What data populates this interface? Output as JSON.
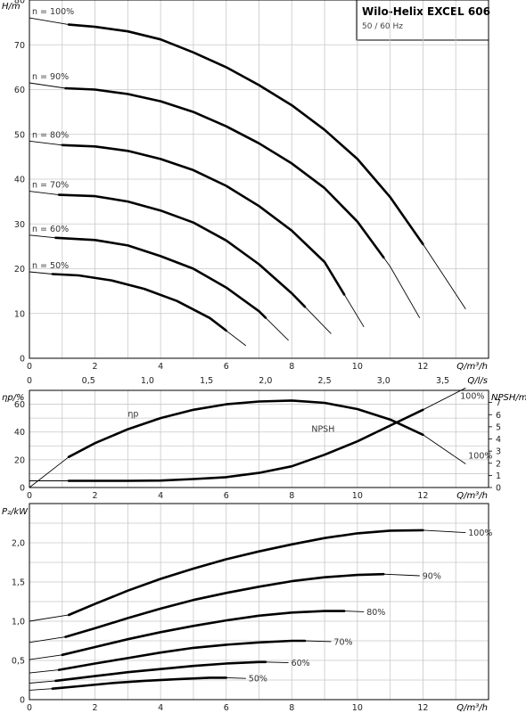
{
  "header": {
    "title": "Wilo-Helix EXCEL 606",
    "subtitle": "50 / 60 Hz"
  },
  "chart_data": [
    {
      "type": "line",
      "name": "head",
      "ylabel": "H/m",
      "xlabel": "Q/m³/h",
      "xlim": [
        0,
        14
      ],
      "ylim": [
        0,
        80
      ],
      "xticks": [
        0,
        2,
        4,
        6,
        8,
        10,
        12
      ],
      "yticks": [
        0,
        10,
        20,
        30,
        40,
        50,
        60,
        70,
        80
      ],
      "secondary_x": {
        "label": "Q/l/s",
        "ticks": [
          "0",
          "0,5",
          "1,0",
          "1,5",
          "2,0",
          "2,5",
          "3,0",
          "3,5"
        ],
        "values": [
          0,
          0.5,
          1.0,
          1.5,
          2.0,
          2.5,
          3.0,
          3.5
        ]
      },
      "grid": true,
      "series": [
        {
          "name": "n = 100%",
          "x": [
            0,
            1.2,
            2,
            3,
            4,
            5,
            6,
            7,
            8,
            9,
            10,
            11,
            12,
            13.3
          ],
          "y": [
            76,
            74.5,
            74,
            73,
            71.2,
            68.3,
            65,
            61,
            56.5,
            51,
            44.5,
            36,
            25.5,
            11
          ],
          "op_start": 1.2,
          "op_end": 12
        },
        {
          "name": "n = 90%",
          "x": [
            0,
            1.1,
            2,
            3,
            4,
            5,
            6,
            7,
            8,
            9,
            10,
            11,
            11.9
          ],
          "y": [
            61.5,
            60.3,
            60,
            59,
            57.4,
            55,
            51.8,
            48,
            43.5,
            38,
            30.5,
            20.5,
            9
          ],
          "op_start": 1.1,
          "op_end": 10.8
        },
        {
          "name": "n = 80%",
          "x": [
            0,
            1,
            2,
            3,
            4,
            5,
            6,
            7,
            8,
            9,
            10.2
          ],
          "y": [
            48.5,
            47.6,
            47.3,
            46.3,
            44.5,
            42,
            38.5,
            34,
            28.5,
            21.5,
            7
          ],
          "op_start": 1.0,
          "op_end": 9.6
        },
        {
          "name": "n = 70%",
          "x": [
            0,
            0.9,
            2,
            3,
            4,
            5,
            6,
            7,
            8,
            9.2
          ],
          "y": [
            37.3,
            36.5,
            36.2,
            35,
            33,
            30.3,
            26.3,
            21,
            14.5,
            5.5
          ],
          "op_start": 0.9,
          "op_end": 8.4
        },
        {
          "name": "n = 60%",
          "x": [
            0,
            0.8,
            2,
            3,
            4,
            5,
            6,
            7,
            7.9
          ],
          "y": [
            27.5,
            26.9,
            26.4,
            25.2,
            22.8,
            20,
            15.8,
            10.5,
            4
          ],
          "op_start": 0.8,
          "op_end": 7.2
        },
        {
          "name": "n = 50%",
          "x": [
            0,
            0.7,
            1.5,
            2.5,
            3.5,
            4.5,
            5.5,
            6.6
          ],
          "y": [
            19.3,
            18.8,
            18.5,
            17.4,
            15.5,
            12.8,
            9,
            2.8
          ],
          "op_start": 0.7,
          "op_end": 6.0
        }
      ]
    },
    {
      "type": "line",
      "name": "efficiency-npsh",
      "ylabel": "ηp/%",
      "xlabel": "Q/m³/h",
      "y2label": "NPSH/m",
      "xlim": [
        0,
        14
      ],
      "ylim": [
        0,
        70
      ],
      "y2lim": [
        0,
        8
      ],
      "xticks": [
        0,
        2,
        4,
        6,
        8,
        10,
        12
      ],
      "yticks": [
        0,
        20,
        40,
        60
      ],
      "yticks_minor": [
        10,
        30,
        50,
        70
      ],
      "y2ticks": [
        0,
        1,
        2,
        3,
        4,
        5,
        6,
        7
      ],
      "grid": true,
      "series": [
        {
          "name": "ηp",
          "label_end": "100%",
          "x": [
            0,
            1.2,
            2,
            3,
            4,
            5,
            6,
            7,
            8,
            9,
            10,
            11,
            12,
            13.3
          ],
          "y": [
            0,
            22,
            32,
            42,
            50,
            56,
            60,
            62,
            62.7,
            61,
            56.5,
            49,
            38,
            17
          ],
          "op_start": 1.2,
          "op_end": 12
        },
        {
          "name": "NPSH",
          "label_end": "100%",
          "axis": "y2",
          "x": [
            0,
            1.2,
            2,
            3,
            4,
            5,
            6,
            7,
            8,
            9,
            10,
            11,
            12,
            13.3
          ],
          "y": [
            0.55,
            0.55,
            0.55,
            0.55,
            0.57,
            0.7,
            0.85,
            1.2,
            1.75,
            2.7,
            3.8,
            5.1,
            6.4,
            8.2
          ],
          "op_start": 1.2,
          "op_end": 12
        }
      ]
    },
    {
      "type": "line",
      "name": "power",
      "ylabel": "P₂/kW",
      "xlabel": "Q/m³/h",
      "xlim": [
        0,
        14
      ],
      "ylim": [
        0,
        2.5
      ],
      "xticks": [
        0,
        2,
        4,
        6,
        8,
        10,
        12
      ],
      "yticks": [
        0,
        0.5,
        1.0,
        1.5,
        2.0
      ],
      "ytick_labels": [
        "0",
        "0,5",
        "1,0",
        "1,5",
        "2,0"
      ],
      "grid": true,
      "series": [
        {
          "name": "100%",
          "x": [
            0,
            1.2,
            2,
            3,
            4,
            5,
            6,
            7,
            8,
            9,
            10,
            11,
            12,
            13.3
          ],
          "y": [
            1.0,
            1.08,
            1.22,
            1.39,
            1.54,
            1.67,
            1.79,
            1.89,
            1.98,
            2.06,
            2.12,
            2.155,
            2.16,
            2.13
          ],
          "op_start": 1.2,
          "op_end": 12
        },
        {
          "name": "90%",
          "x": [
            0,
            1.1,
            2,
            3,
            4,
            5,
            6,
            7,
            8,
            9,
            10,
            10.8,
            11.9
          ],
          "y": [
            0.73,
            0.8,
            0.91,
            1.04,
            1.16,
            1.27,
            1.36,
            1.44,
            1.51,
            1.56,
            1.59,
            1.6,
            1.58
          ],
          "op_start": 1.1,
          "op_end": 10.8
        },
        {
          "name": "80%",
          "x": [
            0,
            1,
            2,
            3,
            4,
            5,
            6,
            7,
            8,
            9,
            9.6,
            10.2
          ],
          "y": [
            0.51,
            0.57,
            0.67,
            0.77,
            0.86,
            0.94,
            1.01,
            1.07,
            1.11,
            1.13,
            1.13,
            1.12
          ],
          "op_start": 1.0,
          "op_end": 9.6
        },
        {
          "name": "70%",
          "x": [
            0,
            0.9,
            2,
            3,
            4,
            5,
            6,
            7,
            8,
            8.4,
            9.2
          ],
          "y": [
            0.34,
            0.38,
            0.46,
            0.53,
            0.6,
            0.66,
            0.7,
            0.73,
            0.75,
            0.75,
            0.74
          ],
          "op_start": 0.9,
          "op_end": 8.4
        },
        {
          "name": "60%",
          "x": [
            0,
            0.8,
            2,
            3,
            4,
            5,
            6,
            7,
            7.2,
            7.9
          ],
          "y": [
            0.21,
            0.24,
            0.3,
            0.35,
            0.39,
            0.43,
            0.46,
            0.48,
            0.48,
            0.47
          ],
          "op_start": 0.8,
          "op_end": 7.2
        },
        {
          "name": "50%",
          "x": [
            0,
            0.7,
            1.5,
            2.5,
            3.5,
            4.5,
            5.5,
            6.0,
            6.6
          ],
          "y": [
            0.12,
            0.14,
            0.17,
            0.21,
            0.24,
            0.26,
            0.28,
            0.28,
            0.27
          ],
          "op_start": 0.7,
          "op_end": 6.0
        }
      ]
    }
  ]
}
